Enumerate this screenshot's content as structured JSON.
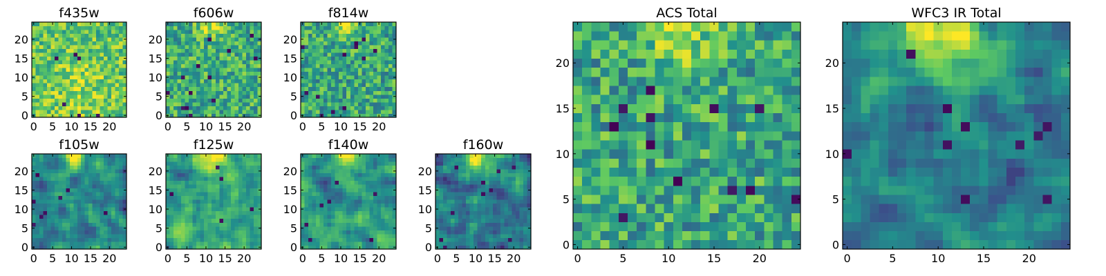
{
  "chart_data": {
    "type": "heatmap",
    "grid_size": 25,
    "colormap": "viridis",
    "colormap_stops": [
      "#440154",
      "#3b528b",
      "#21918c",
      "#5ec962",
      "#fde725"
    ],
    "panels": [
      {
        "id": "f435w",
        "title": "f435w",
        "xlim": [
          0,
          24
        ],
        "ylim": [
          0,
          24
        ],
        "xticks": [
          0,
          5,
          10,
          15,
          20
        ],
        "yticks": [
          0,
          5,
          10,
          15,
          20
        ],
        "xtick_labels": [
          "0",
          "5",
          "10",
          "15",
          "20"
        ],
        "ytick_labels": [
          "0",
          "5",
          "10",
          "15",
          "20"
        ],
        "hotspot": [
          12,
          7,
          6
        ],
        "hot_gain": 0.12,
        "base": 0.72,
        "noise": 0.22,
        "smooth": 0,
        "seed": 11,
        "dark_count": 6
      },
      {
        "id": "f606w",
        "title": "f606w",
        "xlim": [
          0,
          24
        ],
        "ylim": [
          0,
          24
        ],
        "xticks": [
          0,
          5,
          10,
          15,
          20
        ],
        "yticks": [
          0,
          5,
          10,
          15,
          20
        ],
        "xtick_labels": [
          "0",
          "5",
          "10",
          "15",
          "20"
        ],
        "ytick_labels": [
          "0",
          "5",
          "10",
          "15",
          "20"
        ],
        "hotspot": [
          11,
          24,
          2
        ],
        "hot_gain": 0.3,
        "base": 0.62,
        "noise": 0.24,
        "smooth": 0,
        "seed": 22,
        "dark_count": 14
      },
      {
        "id": "f814w",
        "title": "f814w",
        "xlim": [
          0,
          24
        ],
        "ylim": [
          0,
          24
        ],
        "xticks": [
          0,
          5,
          10,
          15,
          20
        ],
        "yticks": [
          0,
          5,
          10,
          15,
          20
        ],
        "xtick_labels": [
          "0",
          "5",
          "10",
          "15",
          "20"
        ],
        "ytick_labels": [
          "0",
          "5",
          "10",
          "15",
          "20"
        ],
        "hotspot": [
          11,
          24,
          2.2
        ],
        "hot_gain": 0.35,
        "base": 0.6,
        "noise": 0.24,
        "smooth": 0,
        "seed": 33,
        "dark_count": 12
      },
      {
        "id": "f105w",
        "title": "f105w",
        "xlim": [
          0,
          24
        ],
        "ylim": [
          0,
          24
        ],
        "xticks": [
          0,
          5,
          10,
          15,
          20
        ],
        "yticks": [
          0,
          5,
          10,
          15,
          20
        ],
        "xtick_labels": [
          "0",
          "5",
          "10",
          "15",
          "20"
        ],
        "ytick_labels": [
          "0",
          "5",
          "10",
          "15",
          "20"
        ],
        "hotspot": [
          11,
          24,
          2.5
        ],
        "hot_gain": 0.55,
        "base": 0.45,
        "noise": 0.3,
        "smooth": 1,
        "seed": 44,
        "dark_count": 8
      },
      {
        "id": "f125w",
        "title": "f125w",
        "xlim": [
          0,
          24
        ],
        "ylim": [
          0,
          24
        ],
        "xticks": [
          0,
          5,
          10,
          15,
          20
        ],
        "yticks": [
          0,
          5,
          10,
          15,
          20
        ],
        "xtick_labels": [
          "0",
          "5",
          "10",
          "15",
          "20"
        ],
        "ytick_labels": [
          "0",
          "5",
          "10",
          "15",
          "20"
        ],
        "hotspot": [
          11,
          24,
          2.5
        ],
        "hot_gain": 0.4,
        "base": 0.55,
        "noise": 0.3,
        "smooth": 1,
        "seed": 55,
        "dark_count": 5
      },
      {
        "id": "f140w",
        "title": "f140w",
        "xlim": [
          0,
          24
        ],
        "ylim": [
          0,
          24
        ],
        "xticks": [
          0,
          5,
          10,
          15,
          20
        ],
        "yticks": [
          0,
          5,
          10,
          15,
          20
        ],
        "xtick_labels": [
          "0",
          "5",
          "10",
          "15",
          "20"
        ],
        "ytick_labels": [
          "0",
          "5",
          "10",
          "15",
          "20"
        ],
        "hotspot": [
          11,
          24,
          2.5
        ],
        "hot_gain": 0.45,
        "base": 0.5,
        "noise": 0.3,
        "smooth": 1,
        "seed": 66,
        "dark_count": 7
      },
      {
        "id": "f160w",
        "title": "f160w",
        "xlim": [
          0,
          24
        ],
        "ylim": [
          0,
          24
        ],
        "xticks": [
          0,
          5,
          10,
          15,
          20
        ],
        "yticks": [
          0,
          5,
          10,
          15,
          20
        ],
        "xtick_labels": [
          "0",
          "5",
          "10",
          "15",
          "20"
        ],
        "ytick_labels": [
          "0",
          "5",
          "10",
          "15",
          "20"
        ],
        "hotspot": [
          11,
          23,
          3
        ],
        "hot_gain": 0.6,
        "base": 0.42,
        "noise": 0.3,
        "smooth": 1,
        "seed": 77,
        "dark_count": 10
      },
      {
        "id": "acs-total",
        "title": "ACS Total",
        "xlim": [
          0,
          24
        ],
        "ylim": [
          0,
          24
        ],
        "xticks": [
          0,
          5,
          10,
          15,
          20
        ],
        "yticks": [
          0,
          5,
          10,
          15,
          20
        ],
        "xtick_labels": [
          "0",
          "5",
          "10",
          "15",
          "20"
        ],
        "ytick_labels": [
          "0",
          "5",
          "10",
          "15",
          "20"
        ],
        "hotspot": [
          11,
          24,
          2.5
        ],
        "hot_gain": 0.4,
        "base": 0.6,
        "noise": 0.25,
        "smooth": 0,
        "seed": 88,
        "dark_count": 12
      },
      {
        "id": "wfc3-ir-total",
        "title": "WFC3 IR Total",
        "xlim": [
          0,
          24
        ],
        "ylim": [
          0,
          24
        ],
        "xticks": [
          0,
          5,
          10,
          15,
          20
        ],
        "yticks": [
          0,
          5,
          10,
          15,
          20
        ],
        "xtick_labels": [
          "0",
          "5",
          "10",
          "15",
          "20"
        ],
        "ytick_labels": [
          "0",
          "5",
          "10",
          "15",
          "20"
        ],
        "hotspot": [
          11,
          23,
          3.5
        ],
        "hot_gain": 0.6,
        "base": 0.42,
        "noise": 0.25,
        "smooth": 1,
        "seed": 99,
        "dark_count": 10
      }
    ]
  }
}
